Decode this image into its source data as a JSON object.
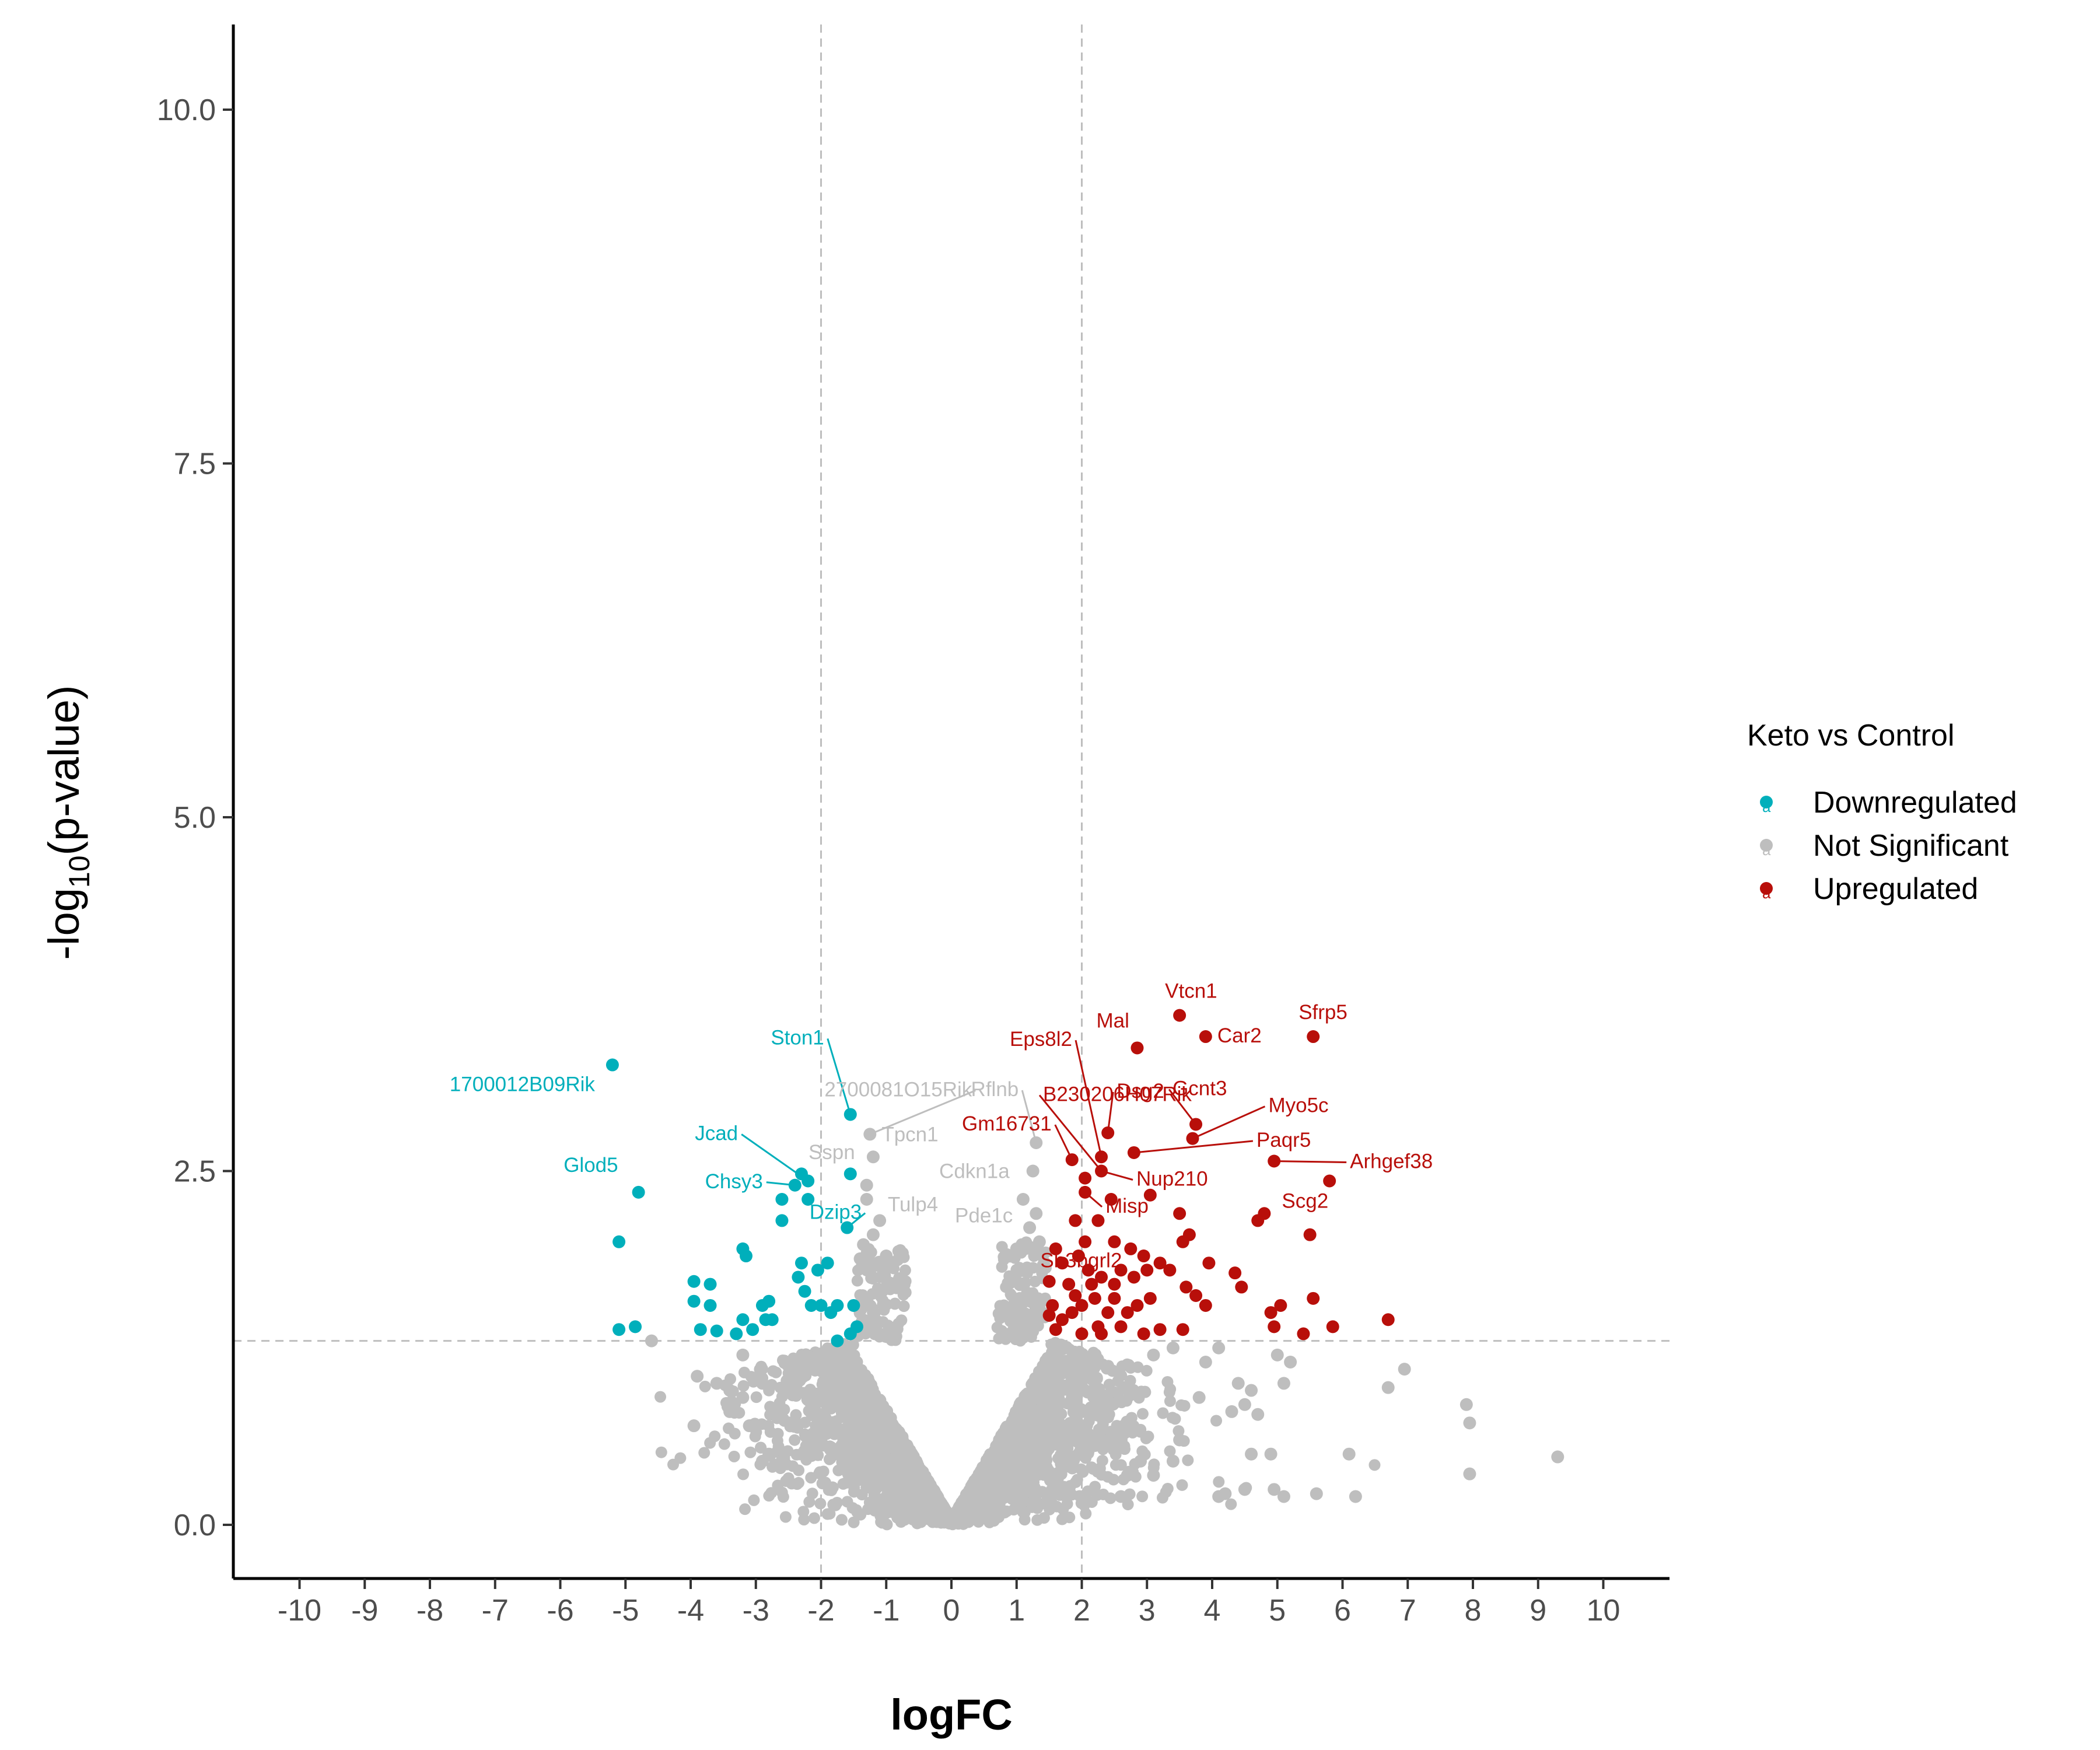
{
  "chart_data": {
    "type": "scatter",
    "xlabel": "logFC",
    "ylabel_parts": [
      "-log",
      "10",
      "(p-value)"
    ],
    "xlim": [
      -10.5,
      10.8
    ],
    "ylim": [
      -0.4,
      10.6
    ],
    "x_ticks": [
      "-10",
      "-9",
      "-8",
      "-7",
      "-6",
      "-5",
      "-4",
      "-3",
      "-2",
      "-1",
      "0",
      "1",
      "2",
      "3",
      "4",
      "5",
      "6",
      "7",
      "8",
      "9",
      "10"
    ],
    "y_ticks": [
      "0.0",
      "2.5",
      "5.0",
      "7.5",
      "10.0"
    ],
    "thresholds": {
      "logfc": [
        -2,
        2
      ],
      "neg_log10_p": 1.3
    },
    "legend": {
      "title": "Keto vs Control",
      "placement": "right",
      "entries": [
        "Downregulated",
        "Not Significant",
        "Upregulated"
      ]
    },
    "colors": {
      "Downregulated": "#00AFBB",
      "Not Significant": "#BEBEBE",
      "Upregulated": "#B80F0A"
    },
    "series": [
      {
        "name": "Downregulated",
        "points": [
          [
            -5.2,
            3.25
          ],
          [
            -4.8,
            2.35
          ],
          [
            -5.1,
            2.0
          ],
          [
            -5.1,
            1.38
          ],
          [
            -4.85,
            1.4
          ],
          [
            -3.95,
            1.72
          ],
          [
            -3.95,
            1.58
          ],
          [
            -3.7,
            1.7
          ],
          [
            -3.7,
            1.55
          ],
          [
            -3.85,
            1.38
          ],
          [
            -3.6,
            1.37
          ],
          [
            -3.3,
            1.35
          ],
          [
            -3.2,
            1.95
          ],
          [
            -3.15,
            1.9
          ],
          [
            -3.2,
            1.45
          ],
          [
            -3.05,
            1.38
          ],
          [
            -2.9,
            1.55
          ],
          [
            -2.85,
            1.45
          ],
          [
            -2.8,
            1.58
          ],
          [
            -2.75,
            1.45
          ],
          [
            -2.6,
            2.15
          ],
          [
            -2.6,
            2.3
          ],
          [
            -2.4,
            2.4
          ],
          [
            -2.3,
            2.48
          ],
          [
            -2.2,
            2.43
          ],
          [
            -2.2,
            2.3
          ],
          [
            -2.3,
            1.85
          ],
          [
            -2.35,
            1.75
          ],
          [
            -2.25,
            1.65
          ],
          [
            -2.15,
            1.55
          ],
          [
            -2.05,
            1.8
          ],
          [
            -2.0,
            1.55
          ],
          [
            -1.9,
            1.85
          ],
          [
            -1.85,
            1.5
          ],
          [
            -1.75,
            1.55
          ],
          [
            -1.6,
            2.1
          ],
          [
            -1.55,
            2.9
          ],
          [
            -1.55,
            2.48
          ],
          [
            -1.5,
            1.55
          ],
          [
            -1.45,
            1.4
          ],
          [
            -1.55,
            1.35
          ],
          [
            -1.75,
            1.3
          ]
        ]
      },
      {
        "name": "Not Significant",
        "points": [
          [
            -1.25,
            2.76
          ],
          [
            -1.2,
            2.6
          ],
          [
            -1.3,
            2.4
          ],
          [
            -1.3,
            2.3
          ],
          [
            -1.1,
            2.15
          ],
          [
            -1.2,
            2.05
          ],
          [
            -1.35,
            1.98
          ],
          [
            -1.4,
            1.88
          ],
          [
            -1.3,
            1.9
          ],
          [
            -1.0,
            1.9
          ],
          [
            1.3,
            2.7
          ],
          [
            1.25,
            2.5
          ],
          [
            1.3,
            2.2
          ],
          [
            1.1,
            2.3
          ],
          [
            1.2,
            2.1
          ],
          [
            1.35,
            2.0
          ],
          [
            1.0,
            1.95
          ],
          [
            0.85,
            1.9
          ],
          [
            -4.6,
            1.3
          ],
          [
            -3.2,
            1.2
          ],
          [
            -3.9,
            1.05
          ],
          [
            -3.6,
            1.0
          ],
          [
            -3.4,
            0.95
          ],
          [
            -3.2,
            0.9
          ],
          [
            -2.9,
            1.0
          ],
          [
            -3.4,
            0.8
          ],
          [
            -3.95,
            0.7
          ],
          [
            -3.1,
            0.7
          ],
          [
            -2.8,
            0.5
          ],
          [
            -2.6,
            0.45
          ],
          [
            -2.9,
            0.45
          ],
          [
            -2.0,
            0.6
          ],
          [
            -1.5,
            0.4
          ],
          [
            -1.0,
            0.3
          ],
          [
            3.1,
            1.2
          ],
          [
            3.4,
            1.25
          ],
          [
            3.9,
            1.15
          ],
          [
            4.1,
            1.25
          ],
          [
            4.4,
            1.0
          ],
          [
            4.6,
            0.95
          ],
          [
            5.0,
            1.2
          ],
          [
            5.2,
            1.15
          ],
          [
            5.1,
            1.0
          ],
          [
            3.8,
            0.9
          ],
          [
            4.3,
            0.8
          ],
          [
            4.5,
            0.85
          ],
          [
            4.7,
            0.78
          ],
          [
            6.95,
            1.1
          ],
          [
            6.7,
            0.97
          ],
          [
            7.9,
            0.85
          ],
          [
            7.95,
            0.72
          ],
          [
            7.95,
            0.36
          ],
          [
            9.3,
            0.48
          ],
          [
            5.6,
            0.22
          ],
          [
            6.2,
            0.2
          ],
          [
            6.1,
            0.5
          ],
          [
            4.5,
            0.25
          ],
          [
            4.6,
            0.5
          ],
          [
            4.9,
            0.5
          ],
          [
            5.1,
            0.2
          ],
          [
            4.95,
            0.25
          ],
          [
            4.2,
            0.22
          ],
          [
            4.1,
            0.2
          ],
          [
            3.1,
            0.35
          ],
          [
            3.4,
            0.45
          ],
          [
            2.6,
            0.2
          ],
          [
            2.7,
            0.35
          ],
          [
            2.9,
            0.45
          ],
          [
            3.5,
            0.6
          ]
        ]
      },
      {
        "name": "Upregulated",
        "points": [
          [
            3.5,
            3.6
          ],
          [
            3.9,
            3.45
          ],
          [
            5.55,
            3.45
          ],
          [
            2.85,
            3.37
          ],
          [
            2.4,
            2.77
          ],
          [
            3.75,
            2.83
          ],
          [
            3.7,
            2.73
          ],
          [
            2.3,
            2.6
          ],
          [
            1.85,
            2.58
          ],
          [
            2.8,
            2.63
          ],
          [
            2.3,
            2.5
          ],
          [
            2.05,
            2.45
          ],
          [
            4.95,
            2.57
          ],
          [
            5.8,
            2.43
          ],
          [
            2.05,
            2.35
          ],
          [
            3.05,
            2.33
          ],
          [
            1.9,
            2.15
          ],
          [
            2.05,
            2.0
          ],
          [
            2.25,
            2.15
          ],
          [
            2.45,
            2.3
          ],
          [
            4.8,
            2.2
          ],
          [
            4.7,
            2.15
          ],
          [
            5.5,
            2.05
          ],
          [
            3.5,
            2.2
          ],
          [
            3.65,
            2.05
          ],
          [
            3.55,
            2.0
          ],
          [
            2.5,
            2.0
          ],
          [
            2.75,
            1.95
          ],
          [
            2.95,
            1.9
          ],
          [
            1.95,
            1.9
          ],
          [
            1.6,
            1.95
          ],
          [
            1.7,
            1.85
          ],
          [
            1.5,
            1.72
          ],
          [
            1.8,
            1.7
          ],
          [
            2.1,
            1.8
          ],
          [
            2.3,
            1.75
          ],
          [
            2.5,
            1.7
          ],
          [
            2.6,
            1.8
          ],
          [
            2.8,
            1.75
          ],
          [
            3.0,
            1.8
          ],
          [
            3.2,
            1.85
          ],
          [
            3.35,
            1.8
          ],
          [
            3.05,
            1.6
          ],
          [
            2.85,
            1.55
          ],
          [
            3.6,
            1.68
          ],
          [
            3.95,
            1.85
          ],
          [
            4.35,
            1.78
          ],
          [
            4.45,
            1.68
          ],
          [
            3.75,
            1.62
          ],
          [
            3.9,
            1.55
          ],
          [
            4.9,
            1.5
          ],
          [
            5.05,
            1.55
          ],
          [
            5.55,
            1.6
          ],
          [
            4.95,
            1.4
          ],
          [
            5.4,
            1.35
          ],
          [
            5.85,
            1.4
          ],
          [
            6.7,
            1.45
          ],
          [
            3.55,
            1.38
          ],
          [
            3.2,
            1.38
          ],
          [
            2.95,
            1.35
          ],
          [
            2.6,
            1.4
          ],
          [
            2.4,
            1.5
          ],
          [
            2.2,
            1.6
          ],
          [
            2.0,
            1.55
          ],
          [
            1.85,
            1.5
          ],
          [
            1.7,
            1.45
          ],
          [
            1.6,
            1.38
          ],
          [
            1.55,
            1.55
          ],
          [
            2.0,
            1.35
          ],
          [
            2.25,
            1.4
          ],
          [
            2.5,
            1.6
          ],
          [
            2.7,
            1.5
          ],
          [
            2.15,
            1.7
          ],
          [
            1.9,
            1.62
          ],
          [
            1.5,
            1.48
          ],
          [
            2.3,
            1.35
          ]
        ]
      }
    ],
    "labels": [
      {
        "text": "1700012B09Rik",
        "group": "Downregulated",
        "x": -5.2,
        "y": 3.25,
        "dx": -30,
        "dy": 45,
        "anchor": "end",
        "line": false
      },
      {
        "text": "Ston1",
        "group": "Downregulated",
        "x": -1.55,
        "y": 2.9,
        "dx": -45,
        "dy": -120,
        "anchor": "end",
        "line": true
      },
      {
        "text": "Jcad",
        "group": "Downregulated",
        "x": -2.2,
        "y": 2.43,
        "dx": -120,
        "dy": -70,
        "anchor": "end",
        "line": true
      },
      {
        "text": "Glod5",
        "group": "Downregulated",
        "x": -4.8,
        "y": 2.35,
        "dx": -35,
        "dy": -35,
        "anchor": "end",
        "line": false
      },
      {
        "text": "Chsy3",
        "group": "Downregulated",
        "x": -2.4,
        "y": 2.4,
        "dx": -55,
        "dy": 5,
        "anchor": "end",
        "line": true
      },
      {
        "text": "Dzip3",
        "group": "Downregulated",
        "x": -1.6,
        "y": 2.1,
        "dx": 25,
        "dy": -15,
        "anchor": "end",
        "line": true
      },
      {
        "text": "2700081O15Rik",
        "group": "Not Significant",
        "x": -1.25,
        "y": 2.76,
        "dx": 175,
        "dy": -65,
        "anchor": "end",
        "line": true
      },
      {
        "text": "Tpcn1",
        "group": "Not Significant",
        "x": -1.25,
        "y": 2.76,
        "dx": 20,
        "dy": 12,
        "anchor": "start",
        "line": false
      },
      {
        "text": "Sspn",
        "group": "Not Significant",
        "x": -1.3,
        "y": 2.4,
        "dx": -20,
        "dy": -45,
        "anchor": "end",
        "line": false
      },
      {
        "text": "Tulp4",
        "group": "Not Significant",
        "x": -1.2,
        "y": 2.05,
        "dx": 25,
        "dy": -40,
        "anchor": "start",
        "line": false
      },
      {
        "text": "Rflnb",
        "group": "Not Significant",
        "x": 1.3,
        "y": 2.7,
        "dx": -30,
        "dy": -80,
        "anchor": "end",
        "line": true
      },
      {
        "text": "Cdkn1a",
        "group": "Not Significant",
        "x": 1.25,
        "y": 2.5,
        "dx": -40,
        "dy": 12,
        "anchor": "end",
        "line": false
      },
      {
        "text": "Pde1c",
        "group": "Not Significant",
        "x": 1.3,
        "y": 2.2,
        "dx": -40,
        "dy": 15,
        "anchor": "end",
        "line": false
      },
      {
        "text": "Vtcn1",
        "group": "Upregulated",
        "x": 3.5,
        "y": 3.6,
        "dx": -25,
        "dy": -30,
        "anchor": "start",
        "line": false
      },
      {
        "text": "Car2",
        "group": "Upregulated",
        "x": 3.9,
        "y": 3.45,
        "dx": 20,
        "dy": 10,
        "anchor": "start",
        "line": false
      },
      {
        "text": "Sfrp5",
        "group": "Upregulated",
        "x": 5.55,
        "y": 3.45,
        "dx": -25,
        "dy": -30,
        "anchor": "start",
        "line": false
      },
      {
        "text": "Mal",
        "group": "Upregulated",
        "x": 2.85,
        "y": 3.37,
        "dx": -70,
        "dy": -35,
        "anchor": "start",
        "line": false
      },
      {
        "text": "Eps8l2",
        "group": "Upregulated",
        "x": 2.3,
        "y": 2.6,
        "dx": -50,
        "dy": -190,
        "anchor": "end",
        "line": true
      },
      {
        "text": "Dsg2",
        "group": "Upregulated",
        "x": 2.4,
        "y": 2.77,
        "dx": 15,
        "dy": -60,
        "anchor": "start",
        "line": true
      },
      {
        "text": "Gcnt3",
        "group": "Upregulated",
        "x": 3.75,
        "y": 2.83,
        "dx": -40,
        "dy": -50,
        "anchor": "start",
        "line": true
      },
      {
        "text": "Myo5c",
        "group": "Upregulated",
        "x": 3.7,
        "y": 2.73,
        "dx": 130,
        "dy": -45,
        "anchor": "start",
        "line": true
      },
      {
        "text": "B230206H07Rik",
        "group": "Upregulated",
        "x": 2.3,
        "y": 2.5,
        "dx": -100,
        "dy": -120,
        "anchor": "start",
        "line": true
      },
      {
        "text": "Gm16731",
        "group": "Upregulated",
        "x": 1.85,
        "y": 2.58,
        "dx": -35,
        "dy": -50,
        "anchor": "end",
        "line": true
      },
      {
        "text": "Paqr5",
        "group": "Upregulated",
        "x": 2.8,
        "y": 2.63,
        "dx": 210,
        "dy": -10,
        "anchor": "start",
        "line": true
      },
      {
        "text": "Nup210",
        "group": "Upregulated",
        "x": 2.3,
        "y": 2.5,
        "dx": 60,
        "dy": 25,
        "anchor": "start",
        "line": true
      },
      {
        "text": "Arhgef38",
        "group": "Upregulated",
        "x": 4.95,
        "y": 2.57,
        "dx": 130,
        "dy": 12,
        "anchor": "start",
        "line": true
      },
      {
        "text": "Scg2",
        "group": "Upregulated",
        "x": 4.8,
        "y": 2.2,
        "dx": 30,
        "dy": -10,
        "anchor": "start",
        "line": false
      },
      {
        "text": "Misp",
        "group": "Upregulated",
        "x": 2.05,
        "y": 2.35,
        "dx": 35,
        "dy": 35,
        "anchor": "start",
        "line": true
      },
      {
        "text": "Sh3bgrl2",
        "group": "Upregulated",
        "x": 1.9,
        "y": 2.15,
        "dx": -60,
        "dy": 80,
        "anchor": "start",
        "line": false
      }
    ]
  }
}
